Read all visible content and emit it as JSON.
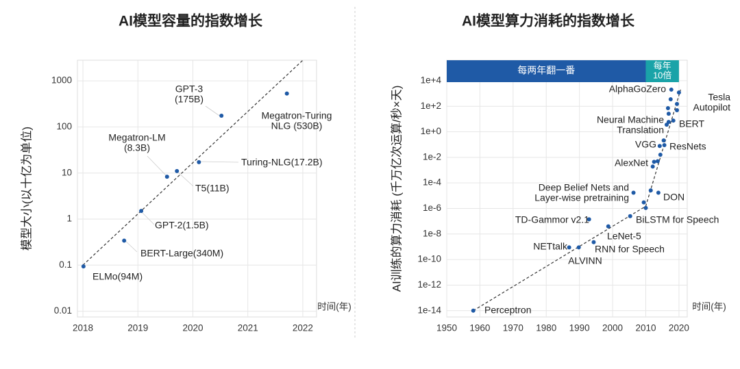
{
  "chart_data": [
    {
      "type": "scatter",
      "title": "AI模型容量的指数增长",
      "y_label": "模型大小(以十亿为单位)",
      "x_label": "时间(年)",
      "log_y": true,
      "grid": true,
      "xlim": [
        2017.9,
        2022.25
      ],
      "ylim": [
        0.0075,
        2800
      ],
      "xticks": [
        2018,
        2019,
        2020,
        2021,
        2022
      ],
      "yticks": [
        0.01,
        0.1,
        1,
        10,
        100,
        {
          "value": 1000,
          "label": "1000"
        }
      ],
      "series": [
        {
          "color": "#1f5aa6",
          "x": [
            2018.01,
            2018.75,
            2019.06,
            2019.53,
            2019.71,
            2020.11,
            2020.52,
            2021.71
          ],
          "values": [
            0.094,
            0.34,
            1.5,
            8.3,
            11,
            17.2,
            175,
            530
          ]
        }
      ],
      "trend": {
        "x": [
          2018,
          2022
        ],
        "values": [
          0.1,
          2800
        ]
      },
      "labels": [
        [
          "ELMo(94M)"
        ],
        [
          "BERT-Large(340M)"
        ],
        [
          "GPT-2(1.5B)"
        ],
        [
          "Megatron-LM",
          "(8.3B)"
        ],
        [
          "T5(11B)"
        ],
        [
          "Turing-NLG(17.2B)"
        ],
        [
          "GPT-3",
          "(175B)"
        ],
        [
          "Megatron-Turing",
          "NLG (530B)"
        ]
      ]
    },
    {
      "type": "scatter",
      "title": "AI模型算力消耗的指数增长",
      "y_label": "AI训练的算力消耗 (千万亿次运算/秒×天)",
      "x_label": "时间(年)",
      "log_y": true,
      "grid": true,
      "xlim": [
        1950,
        2022.5
      ],
      "ylim": [
        3.2e-15,
        400000
      ],
      "xticks": [
        1950,
        1960,
        1970,
        1980,
        1990,
        2000,
        2010,
        2020
      ],
      "yticks": [
        {
          "value": 1e-14,
          "label": "1e-14"
        },
        {
          "value": 1e-12,
          "label": "1e-12"
        },
        {
          "value": 1e-10,
          "label": "1e-10"
        },
        {
          "value": 1e-08,
          "label": "1e-8"
        },
        {
          "value": 1e-06,
          "label": "1e-6"
        },
        {
          "value": 0.0001,
          "label": "1e-4"
        },
        {
          "value": 0.01,
          "label": "1e-2"
        },
        {
          "value": 1,
          "label": "1e+0"
        },
        {
          "value": 100,
          "label": "1e+2"
        },
        {
          "value": 10000,
          "label": "1e+4"
        }
      ],
      "periods": [
        {
          "label": [
            "每两年翻一番"
          ],
          "start": 1950,
          "end": 2010,
          "color": "#1f5aa6"
        },
        {
          "label": [
            "每年",
            "10倍"
          ],
          "start": 2010,
          "end": 2020,
          "color": "#1aa3a8"
        }
      ],
      "series": [
        {
          "color": "#1f5aa6",
          "x": [
            1958,
            1986.9,
            1989.8,
            1992.9,
            1994.3,
            1998.7,
            2005.3,
            2006.3,
            2009.4,
            2010.0,
            2011.5,
            2013.8,
            2012.1,
            2012.5,
            2013.6,
            2014.4,
            2014.2,
            2015.4,
            2015.6,
            2016.3,
            2018.3,
            2016.9,
            2016.7,
            2016.9,
            2019.4,
            2019.4,
            2017.7,
            2020.0,
            2017.5
          ],
          "values": [
            1e-14,
            9e-10,
            9e-10,
            1.4e-07,
            2.3e-09,
            4e-08,
            2.5e-07,
            1.7e-05,
            3e-06,
            1.1e-06,
            2.6e-05,
            1.7e-05,
            0.0019,
            0.0045,
            0.005,
            0.016,
            0.078,
            0.21,
            0.09,
            3.6,
            7.6,
            5.9,
            71,
            26,
            49,
            150,
            2000,
            1200,
            350
          ]
        }
      ],
      "trend": {
        "x": [
          1958,
          2010,
          2020.5
        ],
        "values": [
          1e-14,
          1.5e-06,
          2000
        ]
      },
      "labels": [
        [
          "AlphaGoZero"
        ],
        [
          "Tesla",
          "Autopilot"
        ],
        [
          "Neural Machine",
          "Translation"
        ],
        [
          "BERT"
        ],
        [
          "VGG"
        ],
        [
          "ResNets"
        ],
        [
          "AlexNet"
        ],
        [
          "Deep Belief Nets and",
          "Layer-wise pretraining"
        ],
        [
          "DON"
        ],
        [
          "TD-Gammor v2.1"
        ],
        [
          "BiLSTM for Speech"
        ],
        [
          "LeNet-5"
        ],
        [
          "RNN for Speech"
        ],
        [
          "NETtalk"
        ],
        [
          "ALVINN"
        ],
        [
          "Perceptron"
        ]
      ]
    }
  ]
}
